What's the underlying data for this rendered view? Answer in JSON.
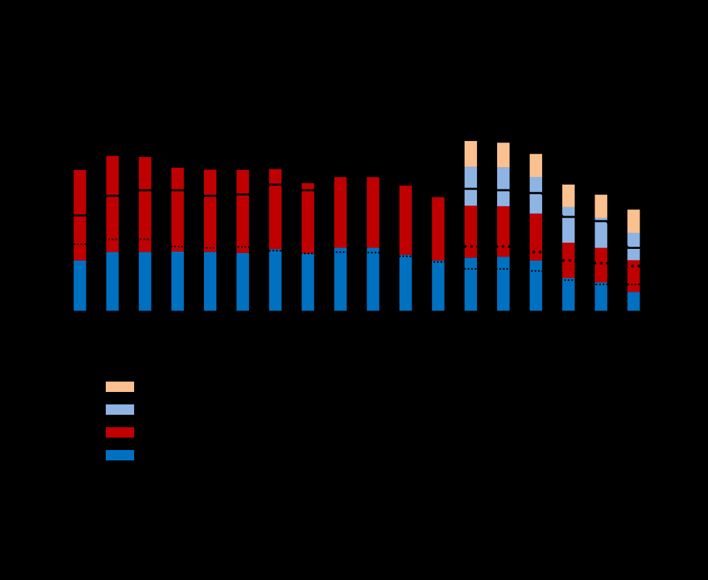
{
  "chart_data": {
    "type": "bar",
    "stacked": true,
    "title": "",
    "xlabel": "",
    "ylabel": "",
    "ylim": [
      0,
      9
    ],
    "y_gridlines": [
      1,
      2,
      3,
      4,
      5,
      6,
      7,
      8
    ],
    "grid": "horizontal-dashed",
    "legend_position": "bottom-left",
    "categories": [
      "",
      "",
      "",
      "",
      "",
      "",
      "",
      "",
      "",
      "",
      "",
      "",
      "",
      "",
      "",
      "",
      "",
      ""
    ],
    "series": [
      {
        "color": "#0070C0",
        "values": [
          1.8,
          2.1,
          2.1,
          2.12,
          2.1,
          2.07,
          2.2,
          2.05,
          2.25,
          2.25,
          2.0,
          1.8,
          1.9,
          1.93,
          1.8,
          1.18,
          1.02,
          0.68
        ]
      },
      {
        "color": "#C00000",
        "values": [
          3.22,
          3.42,
          3.38,
          2.98,
          2.93,
          2.95,
          2.85,
          2.5,
          2.58,
          2.58,
          2.5,
          2.25,
          1.85,
          1.8,
          1.67,
          1.25,
          1.23,
          1.13
        ]
      },
      {
        "color": "#8DB4E2",
        "values": [
          0,
          0,
          0,
          0,
          0,
          0,
          0,
          0,
          0,
          0,
          0,
          0,
          1.38,
          1.38,
          1.3,
          1.27,
          1.07,
          0.97
        ]
      },
      {
        "color": "#FAC090",
        "values": [
          0,
          0,
          0,
          0,
          0,
          0,
          0,
          0,
          0,
          0,
          0,
          0,
          0.92,
          0.88,
          0.82,
          0.8,
          0.82,
          0.83
        ]
      }
    ],
    "lines": [
      {
        "style": "solid",
        "color": "#000000",
        "values": [
          3.4,
          4.1,
          4.3,
          4.3,
          4.1,
          4.15,
          4.5,
          4.3,
          4.8,
          4.8,
          4.5,
          null,
          4.35,
          4.3,
          4.2,
          3.35,
          3.2,
          2.25
        ]
      },
      {
        "style": "dotted",
        "color": "#000000",
        "values": [
          2.38,
          2.55,
          2.55,
          2.3,
          2.25,
          2.28,
          2.15,
          2.05,
          2.1,
          2.08,
          1.95,
          1.75,
          1.5,
          1.5,
          1.43,
          1.1,
          0.95,
          0.95
        ]
      },
      {
        "style": "dotted-large",
        "color": "#000000",
        "values": [
          null,
          null,
          null,
          null,
          null,
          null,
          null,
          null,
          null,
          null,
          null,
          null,
          2.3,
          2.3,
          2.1,
          1.8,
          1.7,
          1.6
        ]
      }
    ],
    "legend": [
      {
        "color": "#FAC090",
        "label": ""
      },
      {
        "color": "#8DB4E2",
        "label": ""
      },
      {
        "color": "#C00000",
        "label": ""
      },
      {
        "color": "#0070C0",
        "label": ""
      }
    ]
  }
}
